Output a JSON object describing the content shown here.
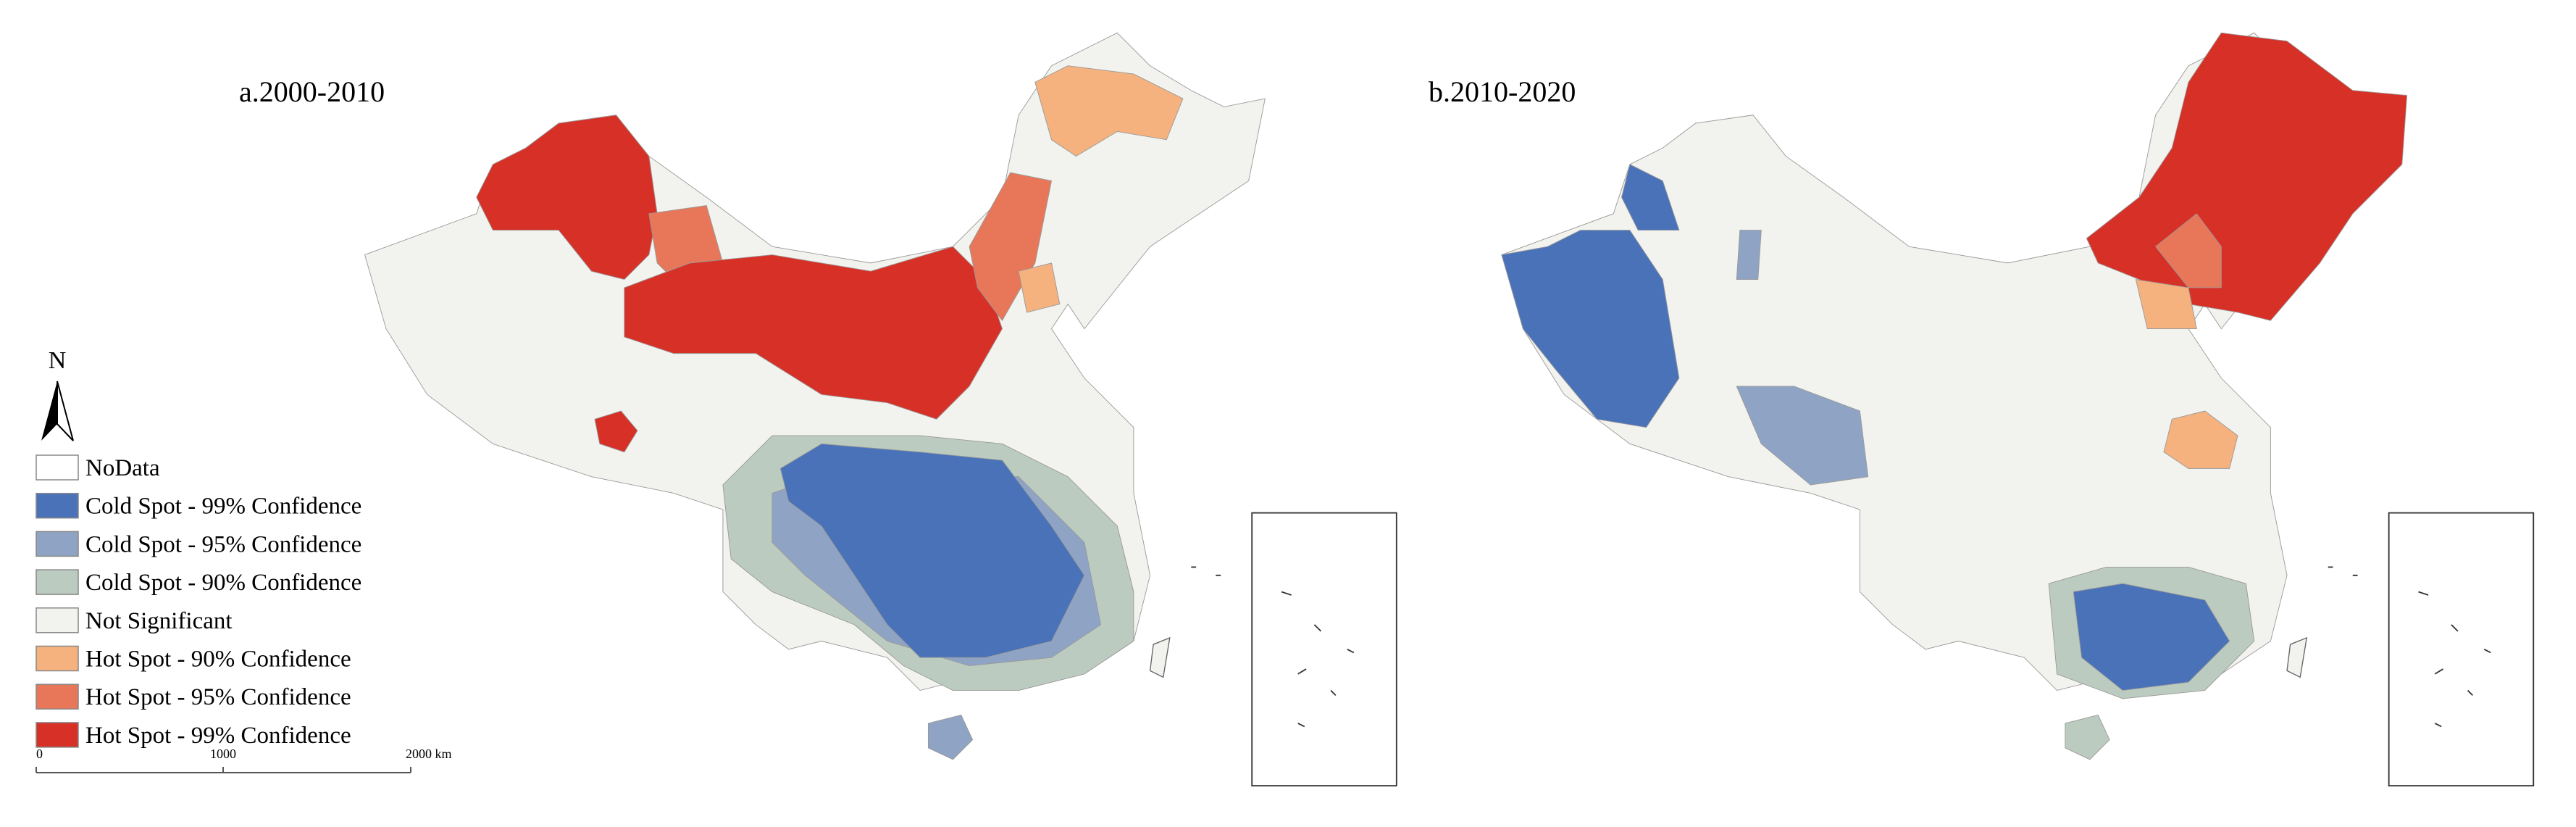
{
  "panels": [
    {
      "title": "a.2000-2010"
    },
    {
      "title": "b.2010-2020"
    }
  ],
  "legend": {
    "items": [
      {
        "label": "NoData",
        "color": "#ffffff"
      },
      {
        "label": "Cold Spot - 99% Confidence",
        "color": "#4a72b8"
      },
      {
        "label": "Cold Spot - 95% Confidence",
        "color": "#8fa4c4"
      },
      {
        "label": "Cold Spot - 90% Confidence",
        "color": "#bccbbf"
      },
      {
        "label": "Not Significant",
        "color": "#f2f2ee"
      },
      {
        "label": "Hot Spot - 90% Confidence",
        "color": "#f5b27f"
      },
      {
        "label": "Hot Spot - 95% Confidence",
        "color": "#e8775a"
      },
      {
        "label": "Hot Spot - 99% Confidence",
        "color": "#d73027"
      }
    ]
  },
  "north_arrow": {
    "label": "N"
  },
  "scale_bar": {
    "labels": [
      "0",
      "1000",
      "2000 km"
    ]
  }
}
